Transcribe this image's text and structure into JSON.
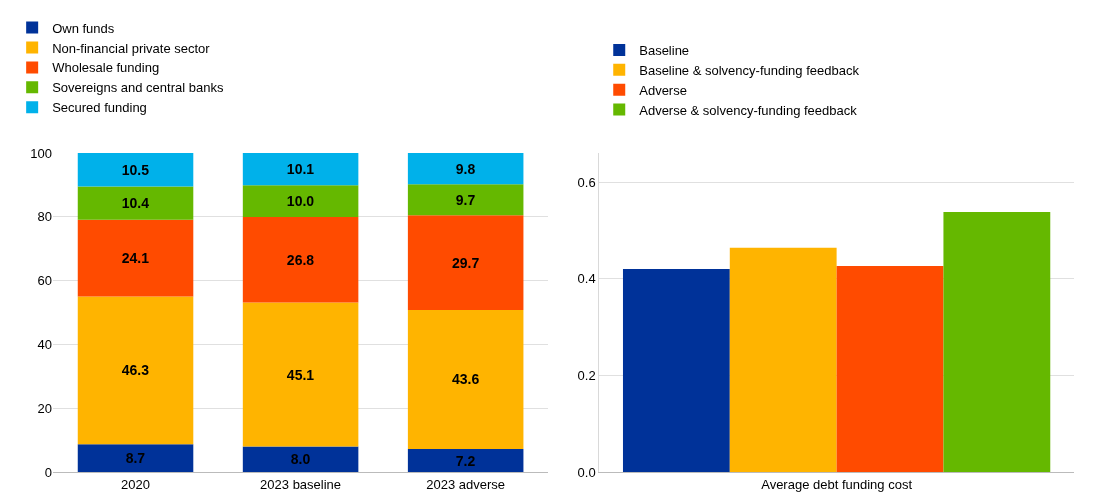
{
  "chart_data": [
    {
      "type": "bar",
      "stacked": true,
      "categories": [
        "2020",
        "2023 baseline",
        "2023 adverse"
      ],
      "ylim": [
        0,
        100
      ],
      "yticks": [
        0,
        20,
        40,
        60,
        80,
        100
      ],
      "grid": "y",
      "legend": "top left",
      "data_labels": true,
      "series": [
        {
          "name": "Own funds",
          "color": "#003299",
          "values": [
            8.7,
            8.0,
            7.2
          ],
          "value_labels": [
            "8.7",
            "8.0",
            "7.2"
          ]
        },
        {
          "name": "Non-financial private sector",
          "color": "#ffb400",
          "values": [
            46.3,
            45.1,
            43.6
          ],
          "value_labels": [
            "46.3",
            "45.1",
            "43.6"
          ]
        },
        {
          "name": "Wholesale funding",
          "color": "#ff4b00",
          "values": [
            24.1,
            26.8,
            29.7
          ],
          "value_labels": [
            "24.1",
            "26.8",
            "29.7"
          ]
        },
        {
          "name": "Sovereigns and central banks",
          "color": "#65b800",
          "values": [
            10.4,
            10.0,
            9.7
          ],
          "value_labels": [
            "10.4",
            "10.0",
            "9.7"
          ]
        },
        {
          "name": "Secured funding",
          "color": "#00b1ea",
          "values": [
            10.5,
            10.1,
            9.8
          ],
          "value_labels": [
            "10.5",
            "10.1",
            "9.8"
          ]
        }
      ]
    },
    {
      "type": "bar",
      "categories": [
        "Average debt funding cost"
      ],
      "ylim": [
        0,
        0.66
      ],
      "yticks": [
        {
          "value": 0,
          "label": "0.0"
        },
        {
          "value": 0.2,
          "label": "0.2"
        },
        {
          "value": 0.4,
          "label": "0.4"
        },
        {
          "value": 0.6,
          "label": "0.6"
        }
      ],
      "grid": "y",
      "legend": "top",
      "series": [
        {
          "name": "Baseline",
          "color": "#003299",
          "values": [
            0.42
          ]
        },
        {
          "name": "Baseline & solvency-funding feedback",
          "color": "#ffb400",
          "values": [
            0.464
          ]
        },
        {
          "name": "Adverse",
          "color": "#ff4b00",
          "values": [
            0.426
          ]
        },
        {
          "name": "Adverse & solvency-funding feedback",
          "color": "#65b800",
          "values": [
            0.538
          ]
        }
      ]
    }
  ]
}
